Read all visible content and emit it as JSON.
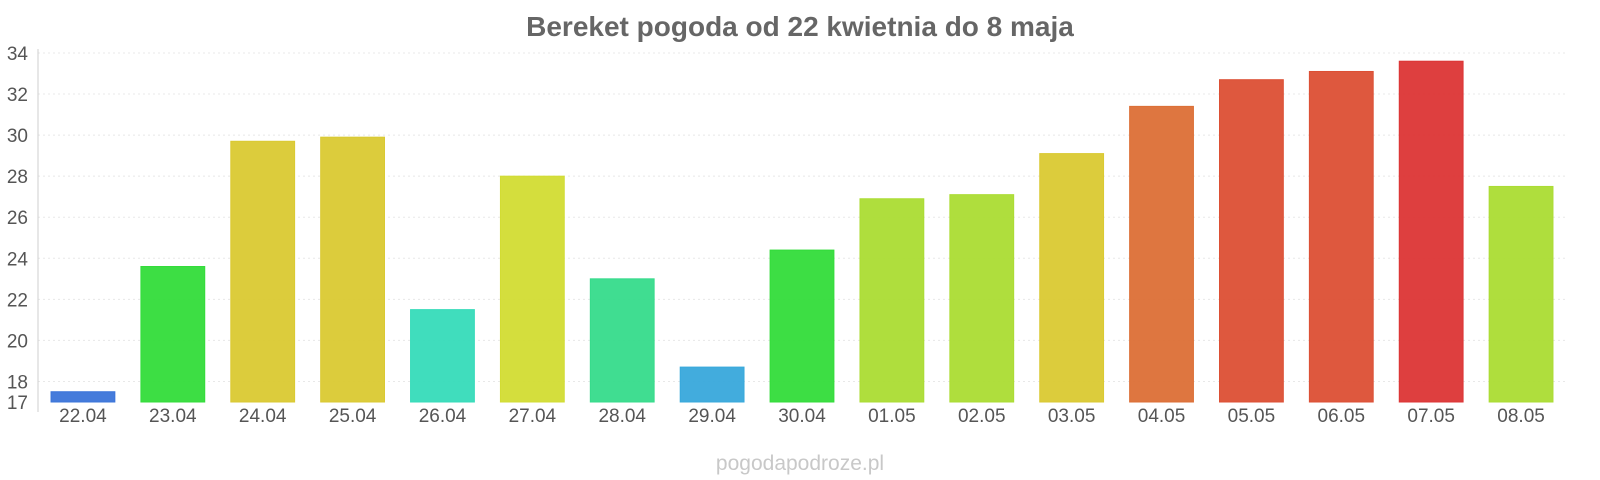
{
  "chart_data": {
    "type": "bar",
    "title": "Bereket pogoda od 22 kwietnia do 8 maja",
    "categories": [
      "22.04",
      "23.04",
      "24.04",
      "25.04",
      "26.04",
      "27.04",
      "28.04",
      "29.04",
      "30.04",
      "01.05",
      "02.05",
      "03.05",
      "04.05",
      "05.05",
      "06.05",
      "07.05",
      "08.05"
    ],
    "values": [
      17.5,
      23.6,
      29.7,
      29.9,
      21.5,
      28.0,
      23.0,
      18.7,
      24.4,
      26.9,
      27.1,
      29.1,
      31.4,
      32.7,
      33.1,
      33.6,
      27.5
    ],
    "colors": [
      "#3b74d9",
      "#33dc3a",
      "#dac932",
      "#dac932",
      "#36dbb9",
      "#d2dc33",
      "#36db8b",
      "#38a8db",
      "#33dc3a",
      "#abdc33",
      "#abdc33",
      "#dac932",
      "#dc6f36",
      "#dc4f34",
      "#dc4f34",
      "#dc3535",
      "#abdc33"
    ],
    "ylim": [
      17,
      34
    ],
    "yticks": [
      17,
      18,
      20,
      22,
      24,
      26,
      28,
      30,
      32,
      34
    ],
    "gridlines": [
      18,
      20,
      22,
      24,
      26,
      28,
      30,
      32,
      34
    ],
    "grid": true,
    "legend": "none"
  },
  "watermark": "pogodapodroze.pl"
}
